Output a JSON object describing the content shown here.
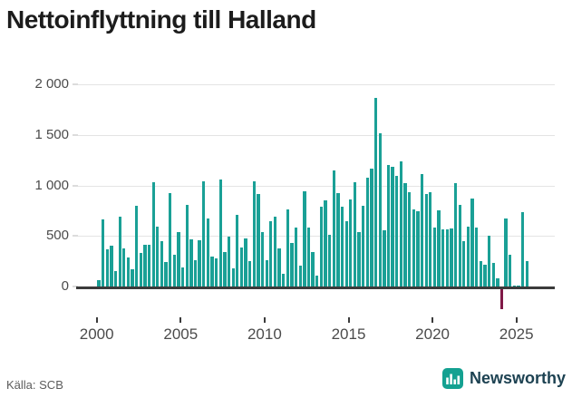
{
  "title": "Nettoinflyttning till Halland",
  "source": "Källa: SCB",
  "brand": {
    "name": "Newsworthy",
    "icon": "bar-chart-logo"
  },
  "colors": {
    "positive_bar": "#1aa096",
    "negative_bar": "#801947",
    "axis": "#3b3b3b",
    "gridline": "#e4e4e4",
    "title_text": "#1c1c1c",
    "tick_text": "#4b4b4b",
    "brand_text": "#1d4252",
    "brand_icon": "#14a191"
  },
  "chart_data": {
    "type": "bar",
    "title": "Nettoinflyttning till Halland",
    "xlabel": "",
    "ylabel": "",
    "ylim": [
      -300,
      2100
    ],
    "grid": "horizontal",
    "legend": "none",
    "frequency": "quarterly",
    "y_ticks": [
      {
        "label": "0",
        "value": 0
      },
      {
        "label": "500",
        "value": 500
      },
      {
        "label": "1 000",
        "value": 1000
      },
      {
        "label": "1 500",
        "value": 1500
      },
      {
        "label": "2 000",
        "value": 2000
      }
    ],
    "x_ticks": [
      {
        "label": "2000",
        "year": 2000
      },
      {
        "label": "2005",
        "year": 2005
      },
      {
        "label": "2010",
        "year": 2010
      },
      {
        "label": "2015",
        "year": 2015
      },
      {
        "label": "2020",
        "year": 2020
      },
      {
        "label": "2025",
        "year": 2025
      }
    ],
    "x": [
      "2000Q1",
      "2000Q2",
      "2000Q3",
      "2000Q4",
      "2001Q1",
      "2001Q2",
      "2001Q3",
      "2001Q4",
      "2002Q1",
      "2002Q2",
      "2002Q3",
      "2002Q4",
      "2003Q1",
      "2003Q2",
      "2003Q3",
      "2003Q4",
      "2004Q1",
      "2004Q2",
      "2004Q3",
      "2004Q4",
      "2005Q1",
      "2005Q2",
      "2005Q3",
      "2005Q4",
      "2006Q1",
      "2006Q2",
      "2006Q3",
      "2006Q4",
      "2007Q1",
      "2007Q2",
      "2007Q3",
      "2007Q4",
      "2008Q1",
      "2008Q2",
      "2008Q3",
      "2008Q4",
      "2009Q1",
      "2009Q2",
      "2009Q3",
      "2009Q4",
      "2010Q1",
      "2010Q2",
      "2010Q3",
      "2010Q4",
      "2011Q1",
      "2011Q2",
      "2011Q3",
      "2011Q4",
      "2012Q1",
      "2012Q2",
      "2012Q3",
      "2012Q4",
      "2013Q1",
      "2013Q2",
      "2013Q3",
      "2013Q4",
      "2014Q1",
      "2014Q2",
      "2014Q3",
      "2014Q4",
      "2015Q1",
      "2015Q2",
      "2015Q3",
      "2015Q4",
      "2016Q1",
      "2016Q2",
      "2016Q3",
      "2016Q4",
      "2017Q1",
      "2017Q2",
      "2017Q3",
      "2017Q4",
      "2018Q1",
      "2018Q2",
      "2018Q3",
      "2018Q4",
      "2019Q1",
      "2019Q2",
      "2019Q3",
      "2019Q4",
      "2020Q1",
      "2020Q2",
      "2020Q3",
      "2020Q4",
      "2021Q1",
      "2021Q2",
      "2021Q3",
      "2021Q4",
      "2022Q1",
      "2022Q2",
      "2022Q3",
      "2022Q4",
      "2023Q1",
      "2023Q2",
      "2023Q3",
      "2023Q4",
      "2024Q1",
      "2024Q2",
      "2024Q3",
      "2024Q4",
      "2025Q1",
      "2025Q2",
      "2025Q3"
    ],
    "values": [
      60,
      660,
      370,
      400,
      150,
      690,
      375,
      290,
      170,
      800,
      335,
      410,
      410,
      1030,
      590,
      445,
      240,
      925,
      310,
      540,
      185,
      805,
      470,
      265,
      460,
      1040,
      670,
      300,
      275,
      1055,
      345,
      490,
      180,
      705,
      390,
      475,
      255,
      1045,
      915,
      540,
      265,
      650,
      690,
      380,
      130,
      765,
      430,
      580,
      210,
      945,
      580,
      340,
      110,
      790,
      855,
      515,
      1145,
      925,
      790,
      645,
      860,
      1030,
      535,
      800,
      1075,
      1170,
      1870,
      1520,
      555,
      1200,
      1185,
      1095,
      1240,
      1020,
      930,
      760,
      745,
      1110,
      915,
      935,
      585,
      750,
      565,
      565,
      575,
      1025,
      810,
      445,
      595,
      870,
      585,
      255,
      220,
      500,
      235,
      85,
      -210,
      675,
      315,
      10,
      10,
      735,
      255
    ]
  }
}
